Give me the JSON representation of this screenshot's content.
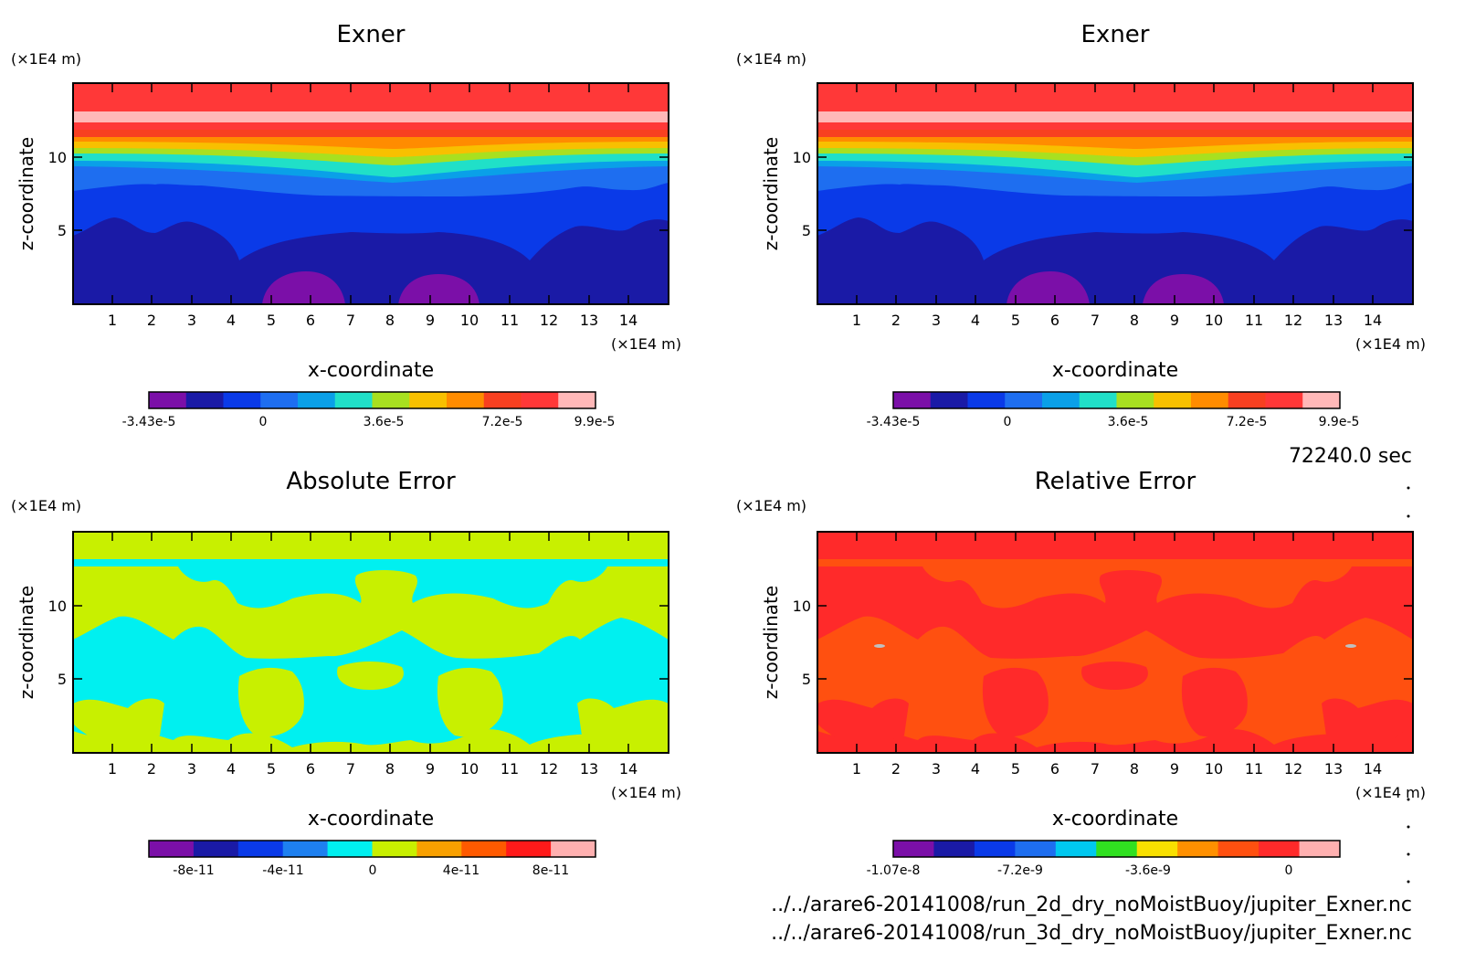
{
  "time_label": "72240.0 sec",
  "file_paths": [
    "../../arare6-20141008/run_2d_dry_noMoistBuoy/jupiter_Exner.nc",
    "../../arare6-20141008/run_3d_dry_noMoistBuoy/jupiter_Exner.nc"
  ],
  "chart_data": [
    {
      "type": "heatmap",
      "title": "Exner",
      "xlabel": "x-coordinate",
      "ylabel": "z-coordinate",
      "x_unit": "(×1E4 m)",
      "y_unit": "(×1E4 m)",
      "xlim": [
        0,
        15
      ],
      "ylim": [
        0,
        15
      ],
      "x_ticks": [
        "1",
        "2",
        "3",
        "4",
        "5",
        "6",
        "7",
        "8",
        "9",
        "10",
        "11",
        "12",
        "13",
        "14"
      ],
      "y_ticks": [
        "5",
        "10"
      ],
      "colorbar": {
        "colors": [
          "#7b0fa8",
          "#1a1aa6",
          "#0a3ae8",
          "#1e6ef0",
          "#0aa0e8",
          "#20e0c8",
          "#a8e020",
          "#f8c000",
          "#ff8c00",
          "#f84020",
          "#ff3838",
          "#ffb8b8"
        ],
        "labels": [
          "-3.43e-5",
          "0",
          "3.6e-5",
          "7.2e-5",
          "9.9e-5"
        ]
      }
    },
    {
      "type": "heatmap",
      "title": "Exner",
      "xlabel": "x-coordinate",
      "ylabel": "z-coordinate",
      "x_unit": "(×1E4 m)",
      "y_unit": "(×1E4 m)",
      "xlim": [
        0,
        15
      ],
      "ylim": [
        0,
        15
      ],
      "x_ticks": [
        "1",
        "2",
        "3",
        "4",
        "5",
        "6",
        "7",
        "8",
        "9",
        "10",
        "11",
        "12",
        "13",
        "14"
      ],
      "y_ticks": [
        "5",
        "10"
      ],
      "colorbar": {
        "colors": [
          "#7b0fa8",
          "#1a1aa6",
          "#0a3ae8",
          "#1e6ef0",
          "#0aa0e8",
          "#20e0c8",
          "#a8e020",
          "#f8c000",
          "#ff8c00",
          "#f84020",
          "#ff3838",
          "#ffb8b8"
        ],
        "labels": [
          "-3.43e-5",
          "0",
          "3.6e-5",
          "7.2e-5",
          "9.9e-5"
        ]
      }
    },
    {
      "type": "heatmap",
      "title": "Absolute Error",
      "xlabel": "x-coordinate",
      "ylabel": "z-coordinate",
      "x_unit": "(×1E4 m)",
      "y_unit": "(×1E4 m)",
      "xlim": [
        0,
        15
      ],
      "ylim": [
        0,
        15
      ],
      "x_ticks": [
        "1",
        "2",
        "3",
        "4",
        "5",
        "6",
        "7",
        "8",
        "9",
        "10",
        "11",
        "12",
        "13",
        "14"
      ],
      "y_ticks": [
        "5",
        "10"
      ],
      "colorbar": {
        "colors": [
          "#7b0fa8",
          "#1a1aa6",
          "#0a3ae8",
          "#1e80f0",
          "#00f0f0",
          "#c8f000",
          "#f8a000",
          "#ff5a00",
          "#ff1a1a",
          "#ffb0b0"
        ],
        "labels": [
          "-8e-11",
          "-4e-11",
          "0",
          "4e-11",
          "8e-11"
        ]
      }
    },
    {
      "type": "heatmap",
      "title": "Relative Error",
      "xlabel": "x-coordinate",
      "ylabel": "z-coordinate",
      "x_unit": "(×1E4 m)",
      "y_unit": "(×1E4 m)",
      "xlim": [
        0,
        15
      ],
      "ylim": [
        0,
        15
      ],
      "x_ticks": [
        "1",
        "2",
        "3",
        "4",
        "5",
        "6",
        "7",
        "8",
        "9",
        "10",
        "11",
        "12",
        "13",
        "14"
      ],
      "y_ticks": [
        "5",
        "10"
      ],
      "colorbar": {
        "colors": [
          "#7b0fa8",
          "#1a1aa6",
          "#0a3ae8",
          "#1e6ef0",
          "#00c8f0",
          "#30e020",
          "#f8e000",
          "#ff9000",
          "#ff5010",
          "#ff2a2a",
          "#ffb0b0"
        ],
        "labels": [
          "-1.07e-8",
          "-7.2e-9",
          "-3.6e-9",
          "0"
        ]
      }
    }
  ]
}
